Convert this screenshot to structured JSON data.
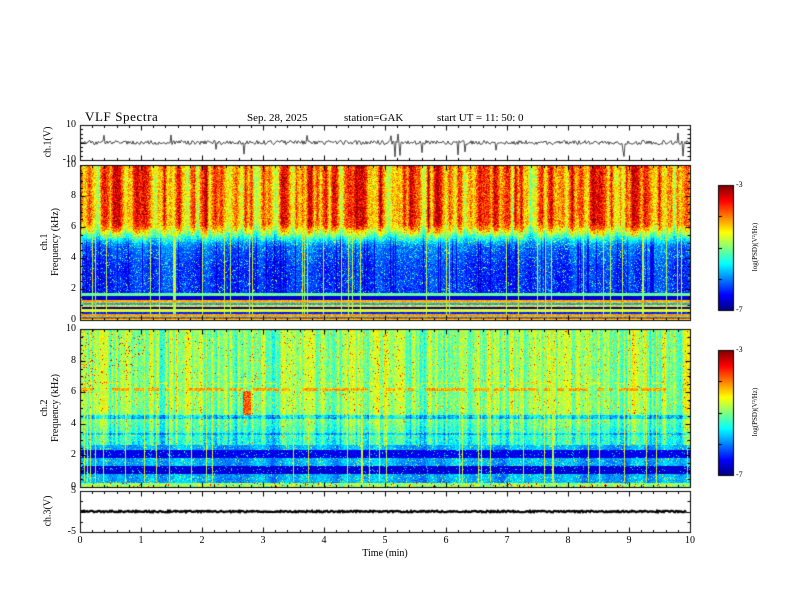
{
  "header": {
    "title": "VLF Spectra",
    "date": "Sep. 28, 2025",
    "station": "station=GAK",
    "start_ut": "start UT =  11: 50: 0"
  },
  "chart_data": {
    "type": "heatmap",
    "title": "VLF Spectra",
    "colormap": "jet",
    "colors": {
      "trace": "#000000",
      "axis": "#000000",
      "background": "#ffffff"
    },
    "x": {
      "label": "Time (min)",
      "lim": [
        0,
        10
      ],
      "ticks": [
        0,
        1,
        2,
        3,
        4,
        5,
        6,
        7,
        8,
        9,
        10
      ],
      "minor_tick_step": 0.2
    },
    "panels": [
      {
        "id": "ch1-waveform",
        "type": "line",
        "ylabel": "ch.1(V)",
        "ylim": [
          -10,
          10
        ],
        "yticks": [
          10,
          -10
        ],
        "signal": "broadband noise around 0 V with frequent impulsive spikes, mostly downward, reaching about -10 V"
      },
      {
        "id": "ch1-spectrogram",
        "type": "heatmap",
        "ylabel_line1": "ch.1",
        "ylabel_line2": "Frequency (kHz)",
        "ylim": [
          0,
          10
        ],
        "yticks": [
          0,
          2,
          4,
          6,
          8,
          10
        ],
        "colorbar": {
          "label": "log(PSD)(V²/Hz)",
          "range": [
            -7,
            -3
          ],
          "tick_labels": [
            "-3",
            "-7"
          ]
        },
        "features": [
          "intense red/orange power above ~6 kHz with dense vertical striations",
          "yellow-green transition band near 5-6 kHz",
          "low power dark blue region between ~1.7 and 5 kHz with cyan speckle and bright vertical streaks",
          "strong horizontal line structure below ~1.7 kHz with alternating red, yellow, green and black bands"
        ]
      },
      {
        "id": "ch2-spectrogram",
        "type": "heatmap",
        "ylabel_line1": "ch.2",
        "ylabel_line2": "Frequency (kHz)",
        "ylim": [
          0,
          10
        ],
        "yticks": [
          0,
          2,
          4,
          6,
          8,
          10
        ],
        "colorbar": {
          "label": "log(PSD)(V²/Hz)",
          "range": [
            -7,
            -3
          ],
          "tick_labels": [
            "-3",
            "-7"
          ]
        },
        "features": [
          "moderate green/cyan power above ~2.7 kHz with vertical striations",
          "dashed yellow horizontal line near 6.2 kHz",
          "blue background below ~2.7 kHz with dark horizontal bands near 1 and 2 kHz",
          "isolated red/orange patches in the first ~3 minutes between 5 and 9.5 kHz"
        ]
      },
      {
        "id": "ch3-waveform",
        "type": "line",
        "ylabel": "ch.3(V)",
        "ylim": [
          -5,
          5
        ],
        "yticks": [
          5,
          -5
        ],
        "signal": "flat trace at 0 V for the whole record"
      }
    ]
  }
}
